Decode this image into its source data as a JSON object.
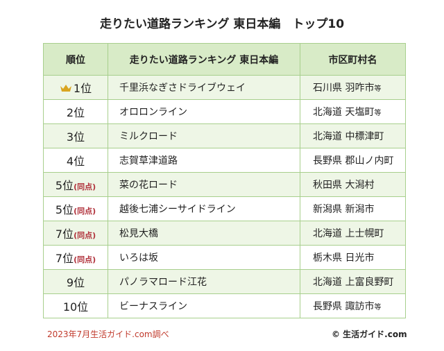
{
  "title": "走りたい道路ランキング 東日本編　トップ10",
  "table": {
    "header": [
      "順位",
      "走りたい道路ランキング 東日本編",
      "市区町村名"
    ],
    "rows": [
      {
        "rank": "1位",
        "road": "千里浜なぎさドライブウェイ",
        "pref": "石川県",
        "city": "羽咋市",
        "suffix": "等"
      },
      {
        "rank": "2位",
        "road": "オロロンライン",
        "pref": "北海道",
        "city": "天塩町",
        "suffix": "等"
      },
      {
        "rank": "3位",
        "road": "ミルクロード",
        "pref": "北海道",
        "city": "中標津町"
      },
      {
        "rank": "4位",
        "road": "志賀草津道路",
        "pref": "長野県",
        "city": "郡山ノ内町"
      },
      {
        "rank": "5位",
        "tie": "(同点)",
        "road": "菜の花ロード",
        "pref": "秋田県",
        "city": "大潟村"
      },
      {
        "rank": "5位",
        "tie": "(同点)",
        "road": "越後七浦シーサイドライン",
        "pref": "新潟県",
        "city": "新潟市"
      },
      {
        "rank": "7位",
        "tie": "(同点)",
        "road": "松見大橋",
        "pref": "北海道",
        "city": "上士幌町"
      },
      {
        "rank": "7位",
        "tie": "(同点)",
        "road": "いろは坂",
        "pref": "栃木県",
        "city": "日光市"
      },
      {
        "rank": "9位",
        "road": "パノラマロード江花",
        "pref": "北海道",
        "city": "上富良野町"
      },
      {
        "rank": "10位",
        "road": "ビーナスライン",
        "pref": "長野県",
        "city": "諏訪市",
        "suffix": "等"
      }
    ]
  },
  "footer": {
    "source": "2023年7月生活ガイド.com調べ",
    "copyright": "© 生活ガイド.com"
  }
}
